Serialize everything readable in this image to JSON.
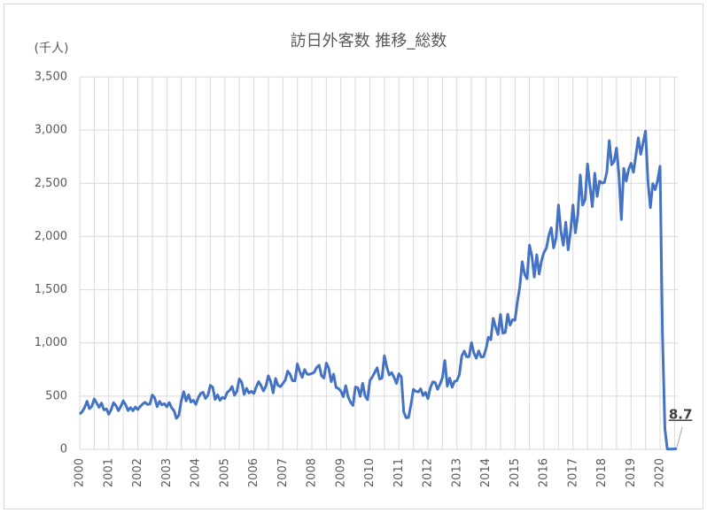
{
  "chart_data": {
    "type": "line",
    "title": "訪日外客数 推移_総数",
    "y_label": "(千人)",
    "categories": [
      "2000",
      null,
      null,
      null,
      null,
      null,
      null,
      null,
      null,
      null,
      null,
      null,
      "2001",
      null,
      null,
      null,
      null,
      null,
      null,
      null,
      null,
      null,
      null,
      null,
      "2002",
      null,
      null,
      null,
      null,
      null,
      null,
      null,
      null,
      null,
      null,
      null,
      "2003",
      null,
      null,
      null,
      null,
      null,
      null,
      null,
      null,
      null,
      null,
      null,
      "2004",
      null,
      null,
      null,
      null,
      null,
      null,
      null,
      null,
      null,
      null,
      null,
      "2005",
      null,
      null,
      null,
      null,
      null,
      null,
      null,
      null,
      null,
      null,
      null,
      "2006",
      null,
      null,
      null,
      null,
      null,
      null,
      null,
      null,
      null,
      null,
      null,
      "2007",
      null,
      null,
      null,
      null,
      null,
      null,
      null,
      null,
      null,
      null,
      null,
      "2008",
      null,
      null,
      null,
      null,
      null,
      null,
      null,
      null,
      null,
      null,
      null,
      "2009",
      null,
      null,
      null,
      null,
      null,
      null,
      null,
      null,
      null,
      null,
      null,
      "2010",
      null,
      null,
      null,
      null,
      null,
      null,
      null,
      null,
      null,
      null,
      null,
      "2011",
      null,
      null,
      null,
      null,
      null,
      null,
      null,
      null,
      null,
      null,
      null,
      "2012",
      null,
      null,
      null,
      null,
      null,
      null,
      null,
      null,
      null,
      null,
      null,
      "2013",
      null,
      null,
      null,
      null,
      null,
      null,
      null,
      null,
      null,
      null,
      null,
      "2014",
      null,
      null,
      null,
      null,
      null,
      null,
      null,
      null,
      null,
      null,
      null,
      "2015",
      null,
      null,
      null,
      null,
      null,
      null,
      null,
      null,
      null,
      null,
      null,
      "2016",
      null,
      null,
      null,
      null,
      null,
      null,
      null,
      null,
      null,
      null,
      null,
      "2017",
      null,
      null,
      null,
      null,
      null,
      null,
      null,
      null,
      null,
      null,
      null,
      "2018",
      null,
      null,
      null,
      null,
      null,
      null,
      null,
      null,
      null,
      null,
      null,
      "2019",
      null,
      null,
      null,
      null,
      null,
      null,
      null,
      null,
      null,
      null,
      null,
      "2020",
      null,
      null,
      null,
      null,
      null,
      null,
      null
    ],
    "values": [
      331,
      353,
      392,
      452,
      382,
      404,
      474,
      436,
      395,
      435,
      371,
      380,
      330,
      373,
      438,
      410,
      363,
      404,
      456,
      418,
      364,
      392,
      362,
      398,
      373,
      403,
      426,
      442,
      422,
      425,
      510,
      483,
      401,
      450,
      418,
      429,
      399,
      440,
      391,
      362,
      291,
      320,
      457,
      541,
      454,
      512,
      444,
      461,
      422,
      483,
      525,
      536,
      478,
      508,
      601,
      583,
      469,
      512,
      461,
      487,
      478,
      535,
      554,
      591,
      508,
      545,
      661,
      630,
      517,
      573,
      529,
      546,
      525,
      586,
      636,
      598,
      549,
      594,
      691,
      635,
      530,
      666,
      600,
      589,
      618,
      650,
      735,
      704,
      645,
      643,
      803,
      730,
      676,
      750,
      707,
      705,
      713,
      725,
      770,
      790,
      692,
      670,
      810,
      762,
      636,
      706,
      582,
      572,
      546,
      495,
      598,
      493,
      444,
      412,
      586,
      578,
      498,
      620,
      503,
      467,
      646,
      680,
      723,
      766,
      660,
      669,
      879,
      773,
      699,
      721,
      677,
      619,
      710,
      680,
      352,
      296,
      300,
      421,
      563,
      546,
      539,
      569,
      505,
      535,
      476,
      577,
      633,
      628,
      564,
      612,
      675,
      835,
      593,
      669,
      584,
      639,
      646,
      702,
      877,
      923,
      870,
      871,
      1003,
      906,
      856,
      925,
      868,
      870,
      943,
      1053,
      1030,
      1231,
      1148,
      1080,
      1268,
      1091,
      1099,
      1270,
      1168,
      1218,
      1214,
      1386,
      1526,
      1763,
      1645,
      1603,
      1918,
      1817,
      1619,
      1829,
      1648,
      1773,
      1851,
      1891,
      2010,
      2082,
      1893,
      1985,
      2296,
      2049,
      1918,
      2135,
      1875,
      2052,
      2296,
      2035,
      2205,
      2579,
      2295,
      2346,
      2682,
      2478,
      2281,
      2595,
      2378,
      2521,
      2501,
      2509,
      2606,
      2901,
      2675,
      2705,
      2832,
      2578,
      2160,
      2641,
      2521,
      2631,
      2689,
      2604,
      2761,
      2927,
      2773,
      2880,
      2991,
      2520,
      2272,
      2497,
      2441,
      2526,
      2661,
      1085,
      194,
      2.9,
      1.7,
      2.6,
      3.8,
      8.7
    ],
    "color": "#4472c4",
    "ylim": [
      0,
      3500
    ],
    "yticks": [
      0,
      500,
      {
        "value": 1000,
        "label": "1,000"
      },
      {
        "value": 1500,
        "label": "1,500"
      },
      {
        "value": 2000,
        "label": "2,000"
      },
      {
        "value": 2500,
        "label": "2,500"
      },
      {
        "value": 3000,
        "label": "3,000"
      },
      {
        "value": 3500,
        "label": "3,500"
      }
    ],
    "grid": true
  }
}
